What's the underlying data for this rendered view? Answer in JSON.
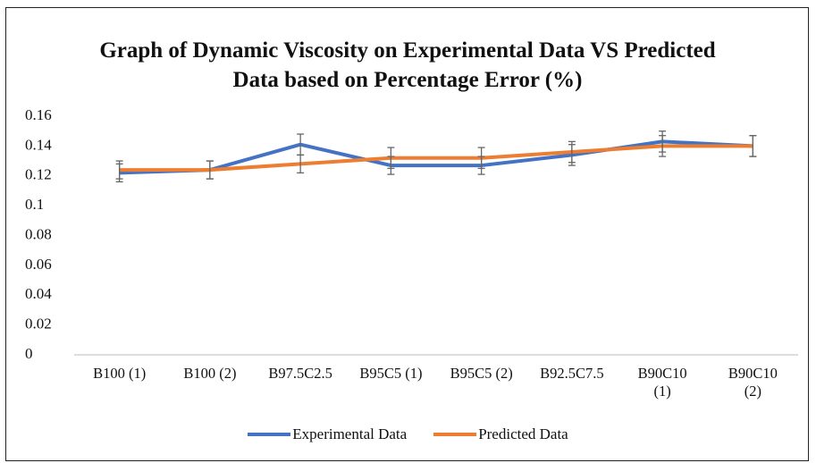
{
  "chart_data": {
    "type": "line",
    "title": "Graph of Dynamic Viscosity on Experimental Data VS Predicted Data based on Percentage Error (%)",
    "categories": [
      "B100 (1)",
      "B100 (2)",
      "B97.5C2.5",
      "B95C5 (1)",
      "B95C5 (2)",
      "B92.5C7.5",
      "B90C10 (1)",
      "B90C10 (2)"
    ],
    "series": [
      {
        "name": "Experimental Data",
        "color": "#4472c4",
        "values": [
          0.122,
          0.124,
          0.141,
          0.127,
          0.127,
          0.134,
          0.143,
          0.14
        ],
        "errors": [
          0.006,
          0.006,
          0.007,
          0.006,
          0.006,
          0.007,
          0.007,
          0.007
        ]
      },
      {
        "name": "Predicted Data",
        "color": "#ed7d31",
        "values": [
          0.124,
          0.124,
          0.128,
          0.132,
          0.132,
          0.136,
          0.14,
          0.14
        ],
        "errors": [
          0.006,
          0.006,
          0.006,
          0.007,
          0.007,
          0.007,
          0.007,
          0.007
        ]
      }
    ],
    "ylim": [
      0,
      0.16
    ],
    "yticks": [
      0,
      0.02,
      0.04,
      0.06,
      0.08,
      0.1,
      0.12,
      0.14,
      0.16
    ],
    "grid": false,
    "legend": "bottom"
  }
}
